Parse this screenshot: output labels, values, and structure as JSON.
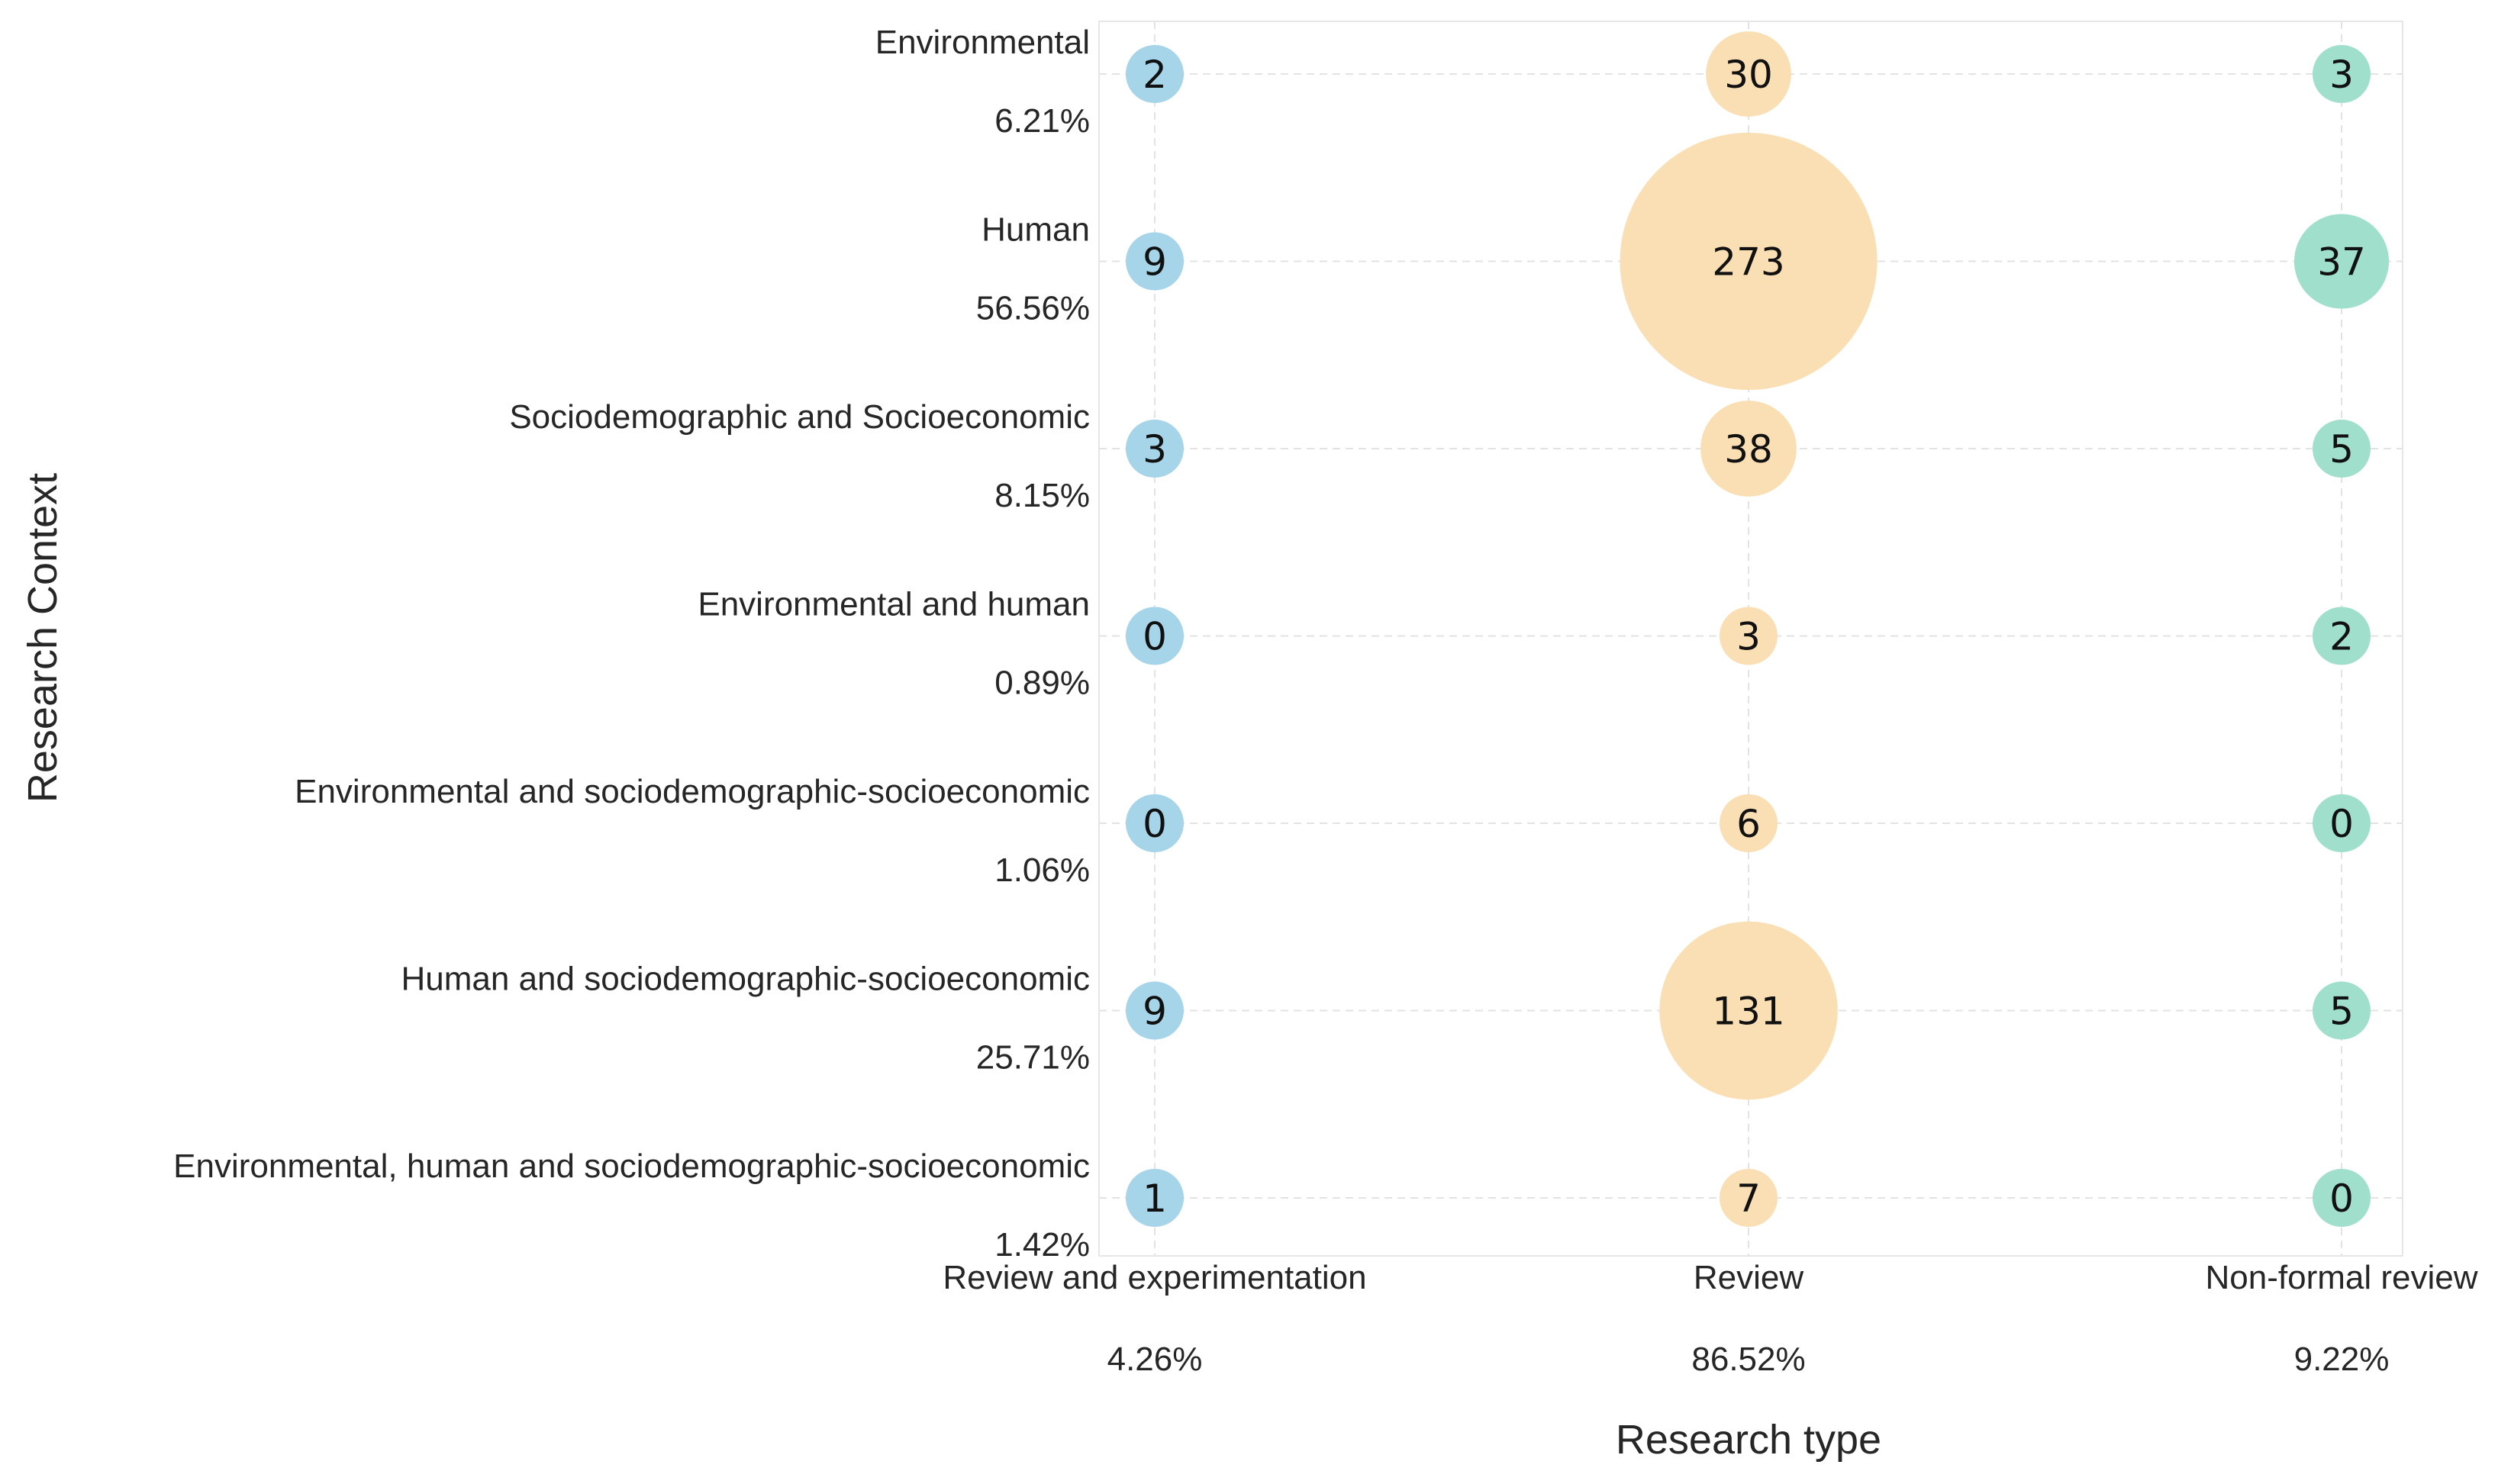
{
  "chart_data": {
    "type": "bubble",
    "xlabel": "Research type",
    "ylabel": "Research Context",
    "columns": [
      {
        "label": "Review and experimentation",
        "pct": "4.26%",
        "color": "#a6d4e8"
      },
      {
        "label": "Review",
        "pct": "86.52%",
        "color": "#fbdfb4"
      },
      {
        "label": "Non-formal review",
        "pct": "9.22%",
        "color": "#9fdfcc"
      }
    ],
    "rows": [
      {
        "label": "Environmental",
        "pct": "6.21%",
        "values": [
          2,
          30,
          3
        ]
      },
      {
        "label": "Human",
        "pct": "56.56%",
        "values": [
          9,
          273,
          37
        ]
      },
      {
        "label": "Sociodemographic and Socioeconomic",
        "pct": "8.15%",
        "values": [
          3,
          38,
          5
        ]
      },
      {
        "label": "Environmental and human",
        "pct": "0.89%",
        "values": [
          0,
          3,
          2
        ]
      },
      {
        "label": "Environmental and sociodemographic-socioeconomic",
        "pct": "1.06%",
        "values": [
          0,
          6,
          0
        ]
      },
      {
        "label": "Human and sociodemographic-socioeconomic",
        "pct": "25.71%",
        "values": [
          9,
          131,
          5
        ]
      },
      {
        "label": "Environmental, human and sociodemographic-socioeconomic",
        "pct": "1.42%",
        "values": [
          1,
          7,
          0
        ]
      }
    ]
  }
}
